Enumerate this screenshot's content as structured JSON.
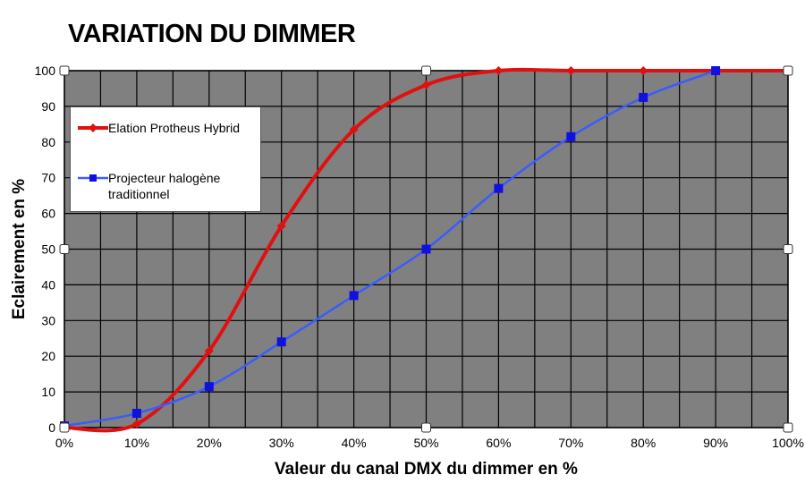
{
  "chart_data": {
    "type": "line",
    "title": "VARIATION DU DIMMER",
    "xlabel": "Valeur du canal DMX du dimmer en %",
    "ylabel": "Eclairement en %",
    "x": [
      0,
      10,
      20,
      30,
      40,
      50,
      60,
      70,
      80,
      90,
      100
    ],
    "x_tick_labels": [
      "0%",
      "10%",
      "20%",
      "30%",
      "40%",
      "50%",
      "60%",
      "70%",
      "80%",
      "90%",
      "100%"
    ],
    "y_tick_labels": [
      "0",
      "10",
      "20",
      "30",
      "40",
      "50",
      "60",
      "70",
      "80",
      "90",
      "100"
    ],
    "xlim": [
      0,
      100
    ],
    "ylim": [
      0,
      100
    ],
    "grid": true,
    "plot_background": "#808080",
    "legend_position": "top-left",
    "series": [
      {
        "name": "Elation Protheus Hybrid",
        "color": "#e01010",
        "marker": "diamond",
        "x": [
          0,
          10,
          20,
          30,
          40,
          50,
          60,
          70,
          80,
          90,
          100
        ],
        "values": [
          0,
          1,
          21.5,
          56.5,
          83.5,
          96,
          100,
          100,
          100,
          100,
          100
        ]
      },
      {
        "name": "Projecteur halogène traditionnel",
        "color": "#3a5cff",
        "marker": "square",
        "x": [
          0,
          10,
          20,
          30,
          40,
          50,
          60,
          70,
          80,
          90
        ],
        "values": [
          0.5,
          4,
          11.5,
          24,
          37,
          50,
          67,
          81.5,
          92.5,
          100
        ]
      }
    ]
  }
}
